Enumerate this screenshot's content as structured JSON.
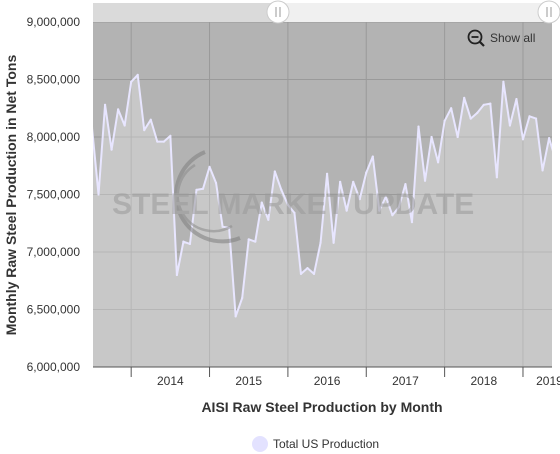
{
  "chart_data": {
    "type": "area",
    "xlabel": "AISI Raw Steel Production by Month",
    "ylabel": "Monthly Raw Steel Production in Net Tons",
    "ylim": [
      6000000,
      9000000
    ],
    "y_ticks": [
      "9,000,000",
      "8,500,000",
      "8,000,000",
      "7,500,000",
      "7,000,000",
      "6,500,000",
      "6,000,000"
    ],
    "y_tick_values": [
      9000000,
      8500000,
      8000000,
      7500000,
      7000000,
      6500000,
      6000000
    ],
    "x_ticks": [
      "2014",
      "2015",
      "2016",
      "2017",
      "2018",
      "2019"
    ],
    "x_start": "2013-07",
    "legend_position": "bottom",
    "grid": true,
    "colors": {
      "plot_background": "#b3b3b3",
      "line": "#e8e6ff",
      "fill": "#ffffff",
      "legend_marker": "#e3e2ff",
      "navigator_track": "#f0f0f0",
      "navigator_selected": "#dadada"
    },
    "series": [
      {
        "name": "Total US Production",
        "values": [
          8080000,
          7500000,
          8280000,
          7890000,
          8240000,
          8100000,
          8480000,
          8540000,
          8060000,
          8150000,
          7960000,
          7960000,
          8010000,
          6800000,
          7090000,
          7070000,
          7540000,
          7550000,
          7740000,
          7600000,
          7220000,
          7210000,
          6440000,
          6600000,
          7110000,
          7090000,
          7430000,
          7280000,
          7700000,
          7540000,
          7410000,
          7340000,
          6810000,
          6860000,
          6810000,
          7080000,
          7680000,
          7080000,
          7610000,
          7360000,
          7610000,
          7460000,
          7690000,
          7830000,
          7360000,
          7480000,
          7320000,
          7390000,
          7590000,
          7260000,
          8090000,
          7620000,
          8000000,
          7780000,
          8140000,
          8250000,
          8000000,
          8340000,
          8160000,
          8210000,
          8280000,
          8290000,
          7650000,
          8480000,
          8100000,
          8330000,
          7980000,
          8180000,
          8160000,
          7710000,
          7990000,
          7800000
        ]
      }
    ]
  },
  "icons": {
    "zoom_reset": "zoom-out-icon",
    "navigator_handles": "slider-handle-icon"
  },
  "buttons": {
    "show_all": "Show all"
  },
  "watermark": {
    "text": "STEEL MARKET UPDATE"
  }
}
